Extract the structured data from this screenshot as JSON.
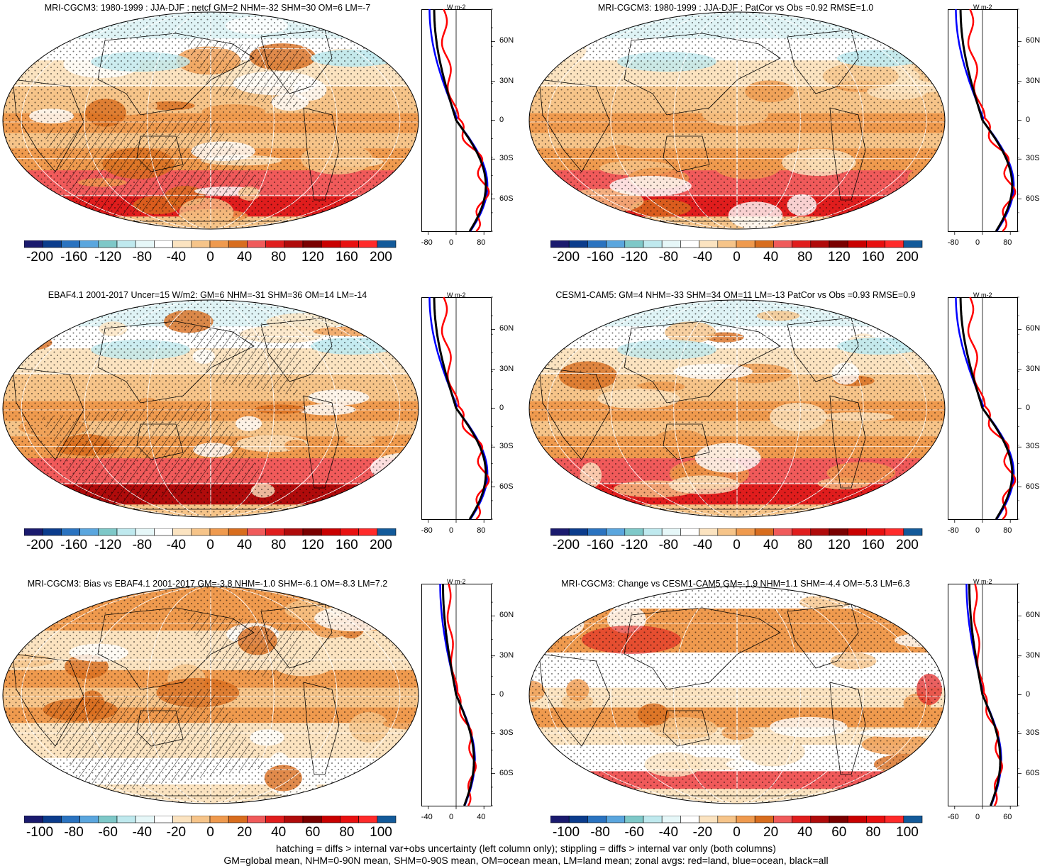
{
  "panels": [
    {
      "title": "MRI-CGCM3: 1980-1999 : JJA-DJF : netcf GM=2 NHM=-32 SHM=30 OM=6 LM=-7",
      "cb_labels": [
        "-200",
        "-160",
        "-120",
        "-80",
        "-40",
        "0",
        "40",
        "80",
        "120",
        "160",
        "200"
      ],
      "z_ticks": [
        "-80",
        "0",
        "80"
      ],
      "hatch": true,
      "scale": "full"
    },
    {
      "title": "MRI-CGCM3: 1980-1999 : JJA-DJF : PatCor vs Obs =0.92 RMSE=1.0",
      "cb_labels": [
        "-200",
        "-160",
        "-120",
        "-80",
        "-40",
        "0",
        "40",
        "80",
        "120",
        "160",
        "200"
      ],
      "z_ticks": [
        "-80",
        "0",
        "80"
      ],
      "hatch": false,
      "scale": "full"
    },
    {
      "title": "EBAF4.1 2001-2017 Uncer=15 W/m2: GM=6 NHM=-31 SHM=36 OM=14 LM=-14",
      "cb_labels": [
        "-200",
        "-160",
        "-120",
        "-80",
        "-40",
        "0",
        "40",
        "80",
        "120",
        "160",
        "200"
      ],
      "z_ticks": [
        "-80",
        "0",
        "80"
      ],
      "hatch": true,
      "scale": "full"
    },
    {
      "title": "CESM1-CAM5: GM=4 NHM=-33 SHM=34 OM=11 LM=-13 PatCor vs Obs =0.93 RMSE=0.9",
      "cb_labels": [
        "-200",
        "-160",
        "-120",
        "-80",
        "-40",
        "0",
        "40",
        "80",
        "120",
        "160",
        "200"
      ],
      "z_ticks": [
        "-80",
        "0",
        "80"
      ],
      "hatch": false,
      "scale": "full"
    },
    {
      "title": "MRI-CGCM3: Bias vs EBAF4.1 2001-2017 GM=-3.8 NHM=-1.0 SHM=-6.1 OM=-8.3 LM=7.2",
      "cb_labels": [
        "-100",
        "-80",
        "-60",
        "-40",
        "-20",
        "0",
        "20",
        "40",
        "60",
        "80",
        "100"
      ],
      "z_ticks": [
        "-40",
        "0",
        "40"
      ],
      "hatch": true,
      "scale": "diff"
    },
    {
      "title": "MRI-CGCM3: Change vs CESM1-CAM5 GM=-1.9 NHM=1.1 SHM=-4.4 OM=-5.3 LM=6.3",
      "cb_labels": [
        "-100",
        "-80",
        "-60",
        "-40",
        "-20",
        "0",
        "20",
        "40",
        "60",
        "80",
        "100"
      ],
      "z_ticks": [
        "-60",
        "0",
        "60"
      ],
      "hatch": false,
      "scale": "diff"
    }
  ],
  "lat_labels": [
    "60N",
    "30N",
    "0",
    "30S",
    "60S"
  ],
  "zonal_unit": "W m-2",
  "footer": {
    "line1": "hatching = diffs > internal var+obs uncertainty (left column only); stippling = diffs > internal var only (both columns)",
    "line2": "GM=global mean, NHM=0-90N mean, SHM=0-90S mean, OM=ocean mean, LM=land mean; zonal avgs: red=land, blue=ocean, black=all"
  },
  "colors": {
    "colorbar": [
      "#1a1a6e",
      "#0b3c8c",
      "#2a73c0",
      "#5aa6de",
      "#7ec8c8",
      "#bfe9ee",
      "#e6f7f8",
      "#ffffff",
      "#fbe3c0",
      "#f6c489",
      "#ef9a4e",
      "#d86d1e",
      "#f05a5a",
      "#e01d1d",
      "#b00b0b",
      "#7a0000",
      "#c90000",
      "#e81010",
      "#ff2a2a",
      "#135a9a"
    ],
    "land_line": "red",
    "ocean_line": "blue",
    "all_line": "black"
  }
}
